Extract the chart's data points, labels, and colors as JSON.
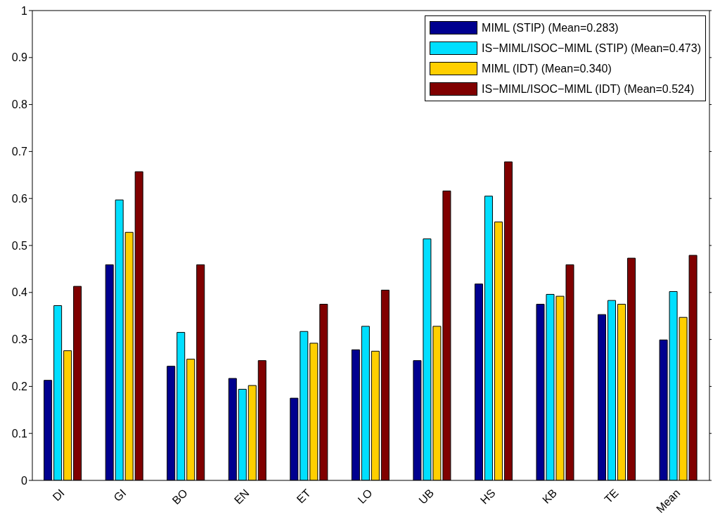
{
  "chart_data": {
    "type": "bar",
    "categories": [
      "DI",
      "GI",
      "BO",
      "EN",
      "ET",
      "LO",
      "UB",
      "HS",
      "KB",
      "TE",
      "Mean"
    ],
    "series": [
      {
        "name": "MIML (STIP) (Mean=0.283)",
        "color": "#00008f",
        "values": [
          0.213,
          0.459,
          0.243,
          0.217,
          0.175,
          0.278,
          0.255,
          0.418,
          0.375,
          0.353,
          0.299
        ]
      },
      {
        "name": "IS−MIML/ISOC−MIML (STIP) (Mean=0.473)",
        "color": "#00dfff",
        "values": [
          0.372,
          0.597,
          0.315,
          0.194,
          0.317,
          0.328,
          0.514,
          0.605,
          0.396,
          0.383,
          0.402
        ]
      },
      {
        "name": "MIML (IDT) (Mean=0.340)",
        "color": "#ffcf00",
        "values": [
          0.276,
          0.528,
          0.258,
          0.202,
          0.292,
          0.275,
          0.328,
          0.55,
          0.392,
          0.375,
          0.347
        ]
      },
      {
        "name": "IS−MIML/ISOC−MIML (IDT) (Mean=0.524)",
        "color": "#800000",
        "values": [
          0.413,
          0.657,
          0.459,
          0.255,
          0.375,
          0.405,
          0.616,
          0.678,
          0.459,
          0.473,
          0.479
        ]
      }
    ],
    "ylim": [
      0,
      1
    ],
    "yticks": [
      0,
      0.1,
      0.2,
      0.3,
      0.4,
      0.5,
      0.6,
      0.7,
      0.8,
      0.9,
      1
    ],
    "grid": false,
    "legend": "top right"
  }
}
